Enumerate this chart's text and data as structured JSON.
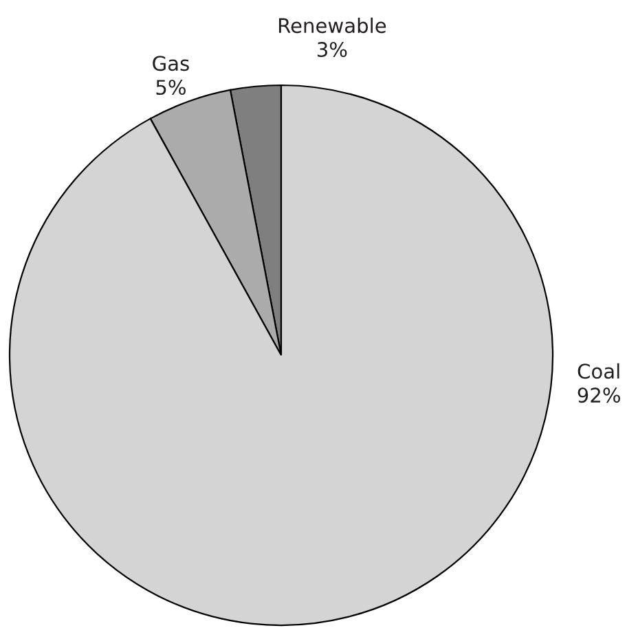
{
  "chart_data": {
    "type": "pie",
    "categories": [
      "Renewable",
      "Gas",
      "Coal"
    ],
    "values": [
      3,
      5,
      92
    ],
    "colors": [
      "#7f7f7f",
      "#ababab",
      "#d4d4d4"
    ],
    "value_labels": [
      "3%",
      "5%",
      "92%"
    ]
  }
}
